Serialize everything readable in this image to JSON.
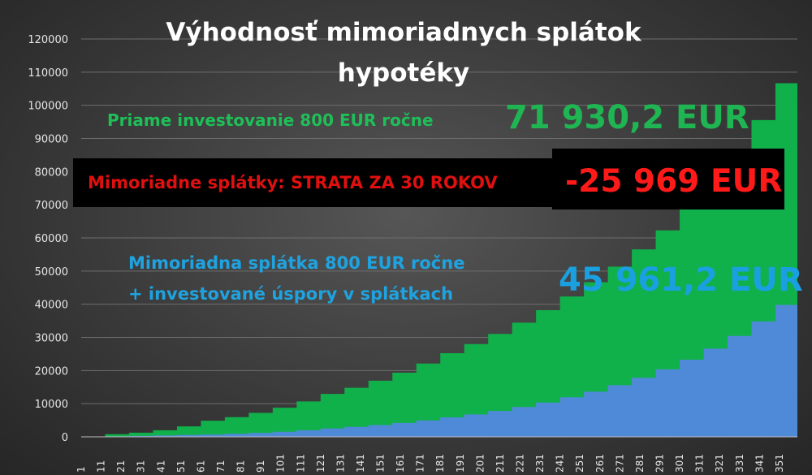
{
  "chart_data": {
    "type": "area",
    "title_line1": "Výhodnosť mimoriadnych splátok",
    "title_line2": "hypotéky",
    "xlabel": "",
    "ylabel": "",
    "ylim": [
      0,
      120000
    ],
    "y_ticks": [
      0,
      10000,
      20000,
      30000,
      40000,
      50000,
      60000,
      70000,
      80000,
      90000,
      100000,
      110000,
      120000
    ],
    "x_ticks": [
      1,
      11,
      21,
      31,
      41,
      51,
      61,
      71,
      81,
      91,
      101,
      111,
      121,
      131,
      141,
      151,
      161,
      171,
      181,
      191,
      201,
      211,
      221,
      231,
      241,
      251,
      261,
      271,
      281,
      291,
      301,
      311,
      321,
      331,
      341,
      351
    ],
    "x_range": [
      1,
      360
    ],
    "grid": "horizontal",
    "legend": "none",
    "series": [
      {
        "color": "#10b04a",
        "points": [
          [
            1,
            0
          ],
          [
            10,
            700
          ],
          [
            60,
            4800
          ],
          [
            120,
            12800
          ],
          [
            180,
            25000
          ],
          [
            240,
            42000
          ],
          [
            300,
            68000
          ],
          [
            360,
            118000
          ]
        ]
      },
      {
        "color": "#4f8ad8",
        "points": [
          [
            1,
            0
          ],
          [
            60,
            700
          ],
          [
            120,
            2500
          ],
          [
            180,
            5800
          ],
          [
            240,
            11800
          ],
          [
            300,
            23000
          ],
          [
            360,
            45000
          ]
        ]
      }
    ],
    "annotations": {
      "green_label": "Priame investovanie 800 EUR ročne",
      "green_value": "71 930,2 EUR",
      "red_label": "Mimoriadne splátky: STRATA ZA 30 ROKOV",
      "red_value": "-25 969 EUR",
      "blue_label_line1": "Mimoriadna splátka 800 EUR ročne",
      "blue_label_line2": "+ investované úspory v splátkach",
      "blue_value": "45 961,2 EUR"
    }
  }
}
